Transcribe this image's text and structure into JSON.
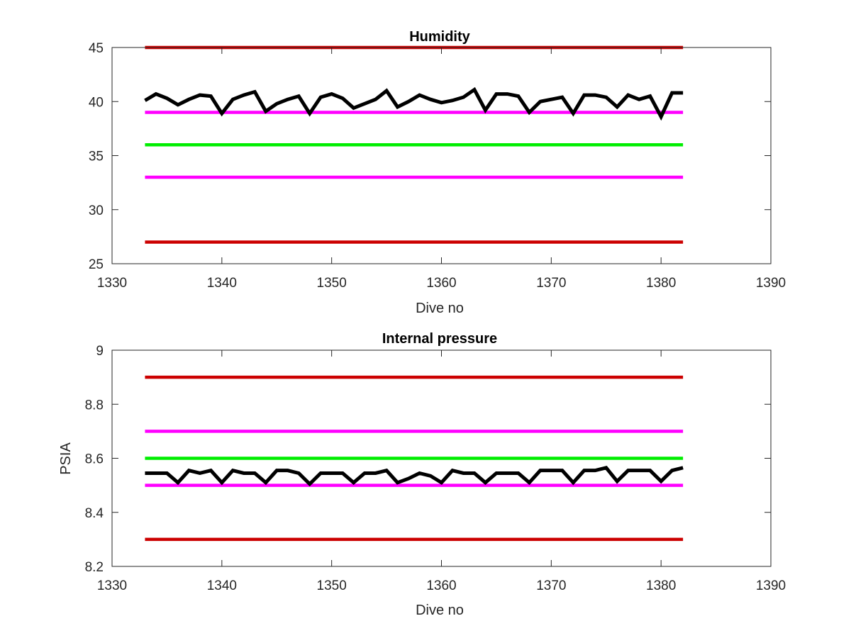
{
  "chart_data": [
    {
      "type": "line",
      "title": "Humidity",
      "xlabel": "Dive no",
      "ylabel": "",
      "xlim": [
        1330,
        1390
      ],
      "ylim": [
        25,
        45
      ],
      "xticks": [
        1330,
        1340,
        1350,
        1360,
        1370,
        1380,
        1390
      ],
      "yticks": [
        25,
        30,
        35,
        40,
        45
      ],
      "grid": false,
      "box": true,
      "series": [
        {
          "color": "#000000",
          "x": [
            1333,
            1334,
            1335,
            1336,
            1337,
            1338,
            1339,
            1340,
            1341,
            1342,
            1343,
            1344,
            1345,
            1346,
            1347,
            1348,
            1349,
            1350,
            1351,
            1352,
            1353,
            1354,
            1355,
            1356,
            1357,
            1358,
            1359,
            1360,
            1361,
            1362,
            1363,
            1364,
            1365,
            1366,
            1367,
            1368,
            1369,
            1370,
            1371,
            1372,
            1373,
            1374,
            1375,
            1376,
            1377,
            1378,
            1379,
            1380,
            1381,
            1382
          ],
          "y": [
            40.1,
            40.7,
            40.3,
            39.7,
            40.2,
            40.6,
            40.5,
            38.9,
            40.2,
            40.6,
            40.9,
            39.1,
            39.8,
            40.2,
            40.5,
            38.9,
            40.4,
            40.7,
            40.3,
            39.4,
            39.8,
            40.2,
            41.0,
            39.5,
            40.0,
            40.6,
            40.2,
            39.9,
            40.1,
            40.4,
            41.1,
            39.2,
            40.7,
            40.7,
            40.5,
            39.0,
            40.0,
            40.2,
            40.4,
            38.9,
            40.6,
            40.6,
            40.4,
            39.5,
            40.6,
            40.2,
            40.5,
            38.6,
            40.8,
            40.8
          ]
        },
        {
          "color": "#cc0000",
          "x": [
            1333,
            1382
          ],
          "y": [
            45,
            45
          ]
        },
        {
          "color": "#ff00ff",
          "x": [
            1333,
            1382
          ],
          "y": [
            39,
            39
          ]
        },
        {
          "color": "#00ee00",
          "x": [
            1333,
            1382
          ],
          "y": [
            36,
            36
          ]
        },
        {
          "color": "#ff00ff",
          "x": [
            1333,
            1382
          ],
          "y": [
            33,
            33
          ]
        },
        {
          "color": "#cc0000",
          "x": [
            1333,
            1382
          ],
          "y": [
            27,
            27
          ]
        }
      ]
    },
    {
      "type": "line",
      "title": "Internal pressure",
      "xlabel": "Dive no",
      "ylabel": "PSIA",
      "xlim": [
        1330,
        1390
      ],
      "ylim": [
        8.2,
        9
      ],
      "xticks": [
        1330,
        1340,
        1350,
        1360,
        1370,
        1380,
        1390
      ],
      "yticks": [
        8.2,
        8.4,
        8.6,
        8.8,
        9
      ],
      "grid": false,
      "box": true,
      "series": [
        {
          "color": "#000000",
          "x": [
            1333,
            1334,
            1335,
            1336,
            1337,
            1338,
            1339,
            1340,
            1341,
            1342,
            1343,
            1344,
            1345,
            1346,
            1347,
            1348,
            1349,
            1350,
            1351,
            1352,
            1353,
            1354,
            1355,
            1356,
            1357,
            1358,
            1359,
            1360,
            1361,
            1362,
            1363,
            1364,
            1365,
            1366,
            1367,
            1368,
            1369,
            1370,
            1371,
            1372,
            1373,
            1374,
            1375,
            1376,
            1377,
            1378,
            1379,
            1380,
            1381,
            1382
          ],
          "y": [
            8.545,
            8.545,
            8.545,
            8.51,
            8.555,
            8.545,
            8.555,
            8.51,
            8.555,
            8.545,
            8.545,
            8.51,
            8.555,
            8.555,
            8.545,
            8.505,
            8.545,
            8.545,
            8.545,
            8.51,
            8.545,
            8.545,
            8.555,
            8.51,
            8.525,
            8.545,
            8.535,
            8.51,
            8.555,
            8.545,
            8.545,
            8.51,
            8.545,
            8.545,
            8.545,
            8.51,
            8.555,
            8.555,
            8.555,
            8.51,
            8.555,
            8.555,
            8.565,
            8.515,
            8.555,
            8.555,
            8.555,
            8.515,
            8.555,
            8.565
          ]
        },
        {
          "color": "#cc0000",
          "x": [
            1333,
            1382
          ],
          "y": [
            8.9,
            8.9
          ]
        },
        {
          "color": "#ff00ff",
          "x": [
            1333,
            1382
          ],
          "y": [
            8.7,
            8.7
          ]
        },
        {
          "color": "#00ee00",
          "x": [
            1333,
            1382
          ],
          "y": [
            8.6,
            8.6
          ]
        },
        {
          "color": "#ff00ff",
          "x": [
            1333,
            1382
          ],
          "y": [
            8.5,
            8.5
          ]
        },
        {
          "color": "#cc0000",
          "x": [
            1333,
            1382
          ],
          "y": [
            8.3,
            8.3
          ]
        }
      ]
    }
  ]
}
